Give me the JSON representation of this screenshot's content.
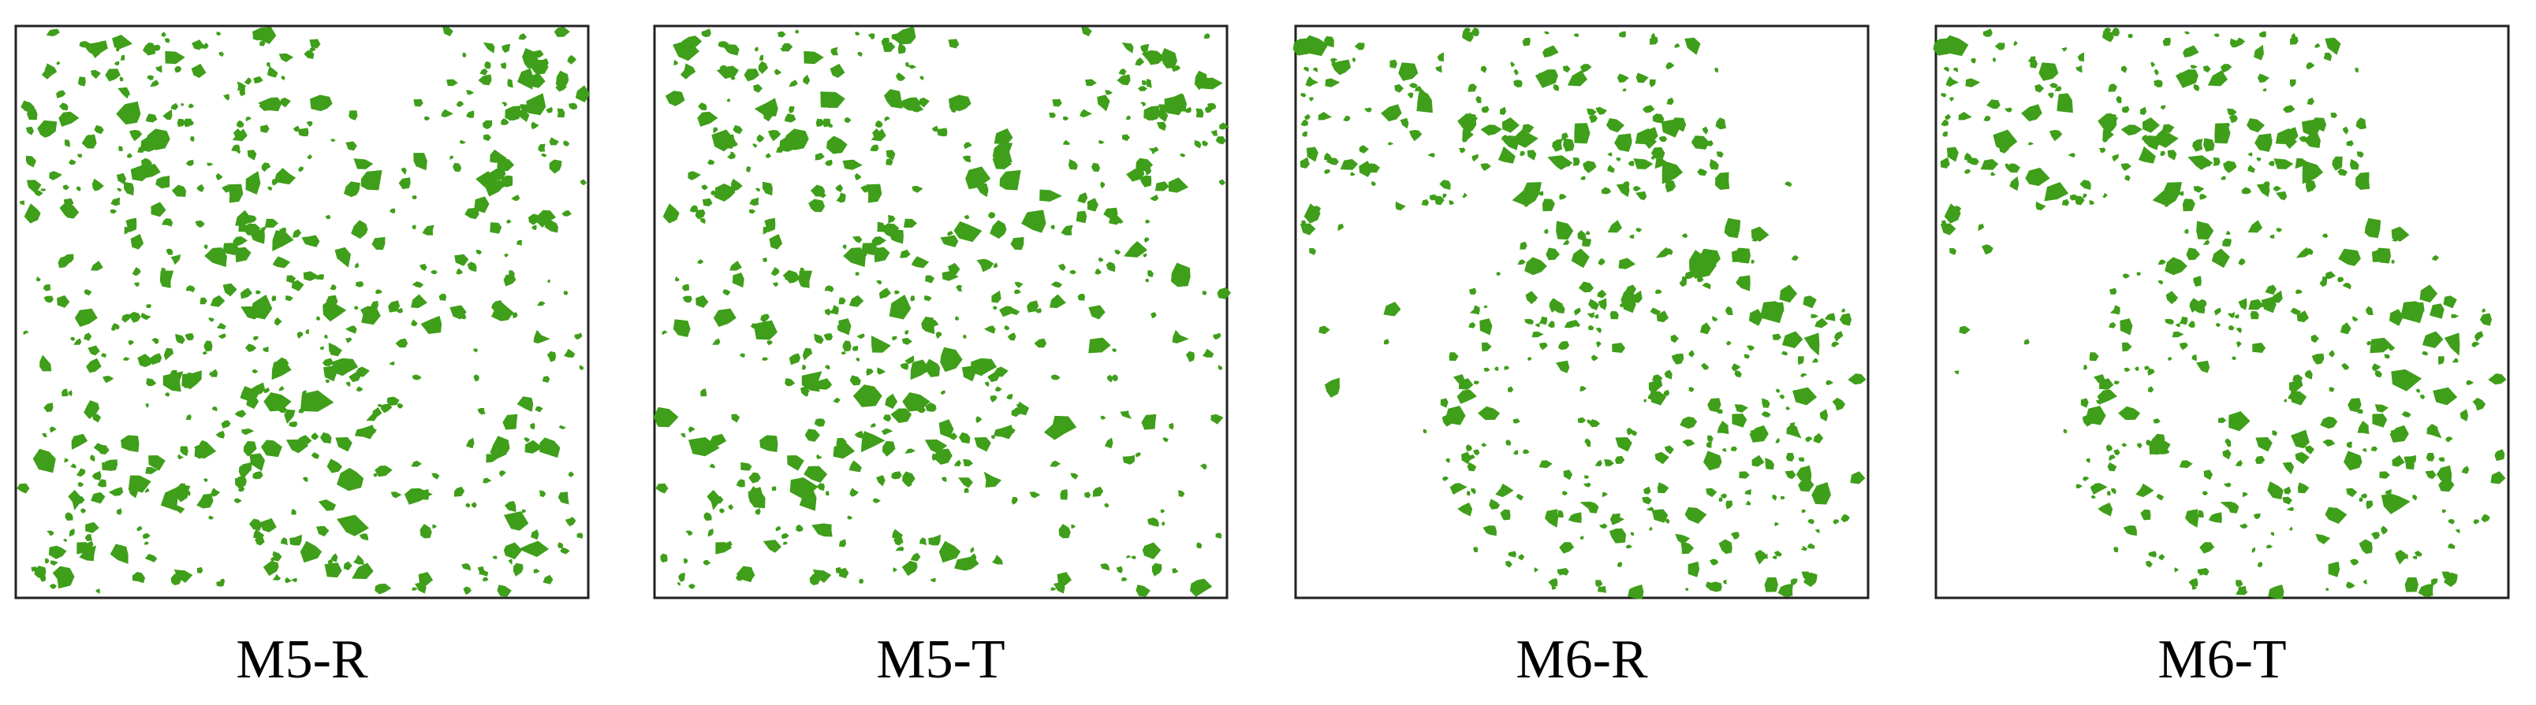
{
  "panels": [
    {
      "label": "M5-R"
    },
    {
      "label": "M5-T"
    },
    {
      "label": "M6-R"
    },
    {
      "label": "M6-T"
    }
  ]
}
